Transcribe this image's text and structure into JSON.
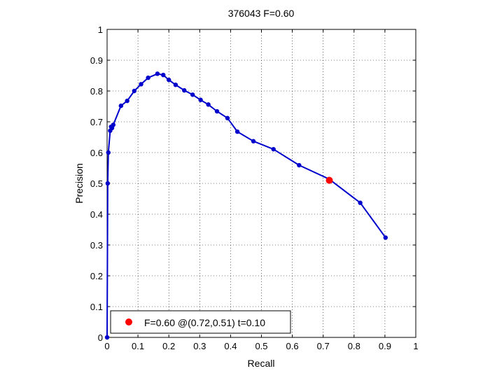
{
  "chart_data": {
    "type": "line",
    "title": "376043 F=0.60",
    "xlabel": "Recall",
    "ylabel": "Precision",
    "xlim": [
      0,
      1
    ],
    "ylim": [
      0,
      1
    ],
    "xticks": [
      0,
      0.1,
      0.2,
      0.3,
      0.4,
      0.5,
      0.6,
      0.7,
      0.8,
      0.9,
      1
    ],
    "xtick_labels": [
      "0",
      "0.1",
      "0.2",
      "0.3",
      "0.4",
      "0.5",
      "0.6",
      "0.7",
      "0.8",
      "0.9",
      "1"
    ],
    "yticks": [
      0,
      0.1,
      0.2,
      0.3,
      0.4,
      0.5,
      0.6,
      0.7,
      0.8,
      0.9,
      1
    ],
    "ytick_labels": [
      "0",
      "0.1",
      "0.2",
      "0.3",
      "0.4",
      "0.5",
      "0.6",
      "0.7",
      "0.8",
      "0.9",
      "1"
    ],
    "grid": true,
    "grid_style": "dotted",
    "legend_position": "bottom-left",
    "series": [
      {
        "color": "#0000cc",
        "marker": "circle",
        "x": [
          0.0,
          0.002,
          0.004,
          0.01,
          0.013,
          0.016,
          0.02,
          0.045,
          0.065,
          0.088,
          0.11,
          0.133,
          0.163,
          0.182,
          0.2,
          0.222,
          0.25,
          0.277,
          0.303,
          0.328,
          0.356,
          0.39,
          0.422,
          0.474,
          0.539,
          0.622,
          0.719,
          0.82,
          0.902
        ],
        "y": [
          0.0,
          0.5,
          0.6,
          0.671,
          0.684,
          0.68,
          0.69,
          0.752,
          0.768,
          0.8,
          0.822,
          0.843,
          0.856,
          0.852,
          0.836,
          0.82,
          0.802,
          0.788,
          0.771,
          0.756,
          0.734,
          0.712,
          0.668,
          0.637,
          0.611,
          0.559,
          0.514,
          0.437,
          0.324
        ]
      }
    ],
    "highlight_point": {
      "x": 0.72,
      "y": 0.51,
      "color": "#ff0000",
      "label": "F=0.60 @(0.72,0.51) t=0.10"
    }
  }
}
